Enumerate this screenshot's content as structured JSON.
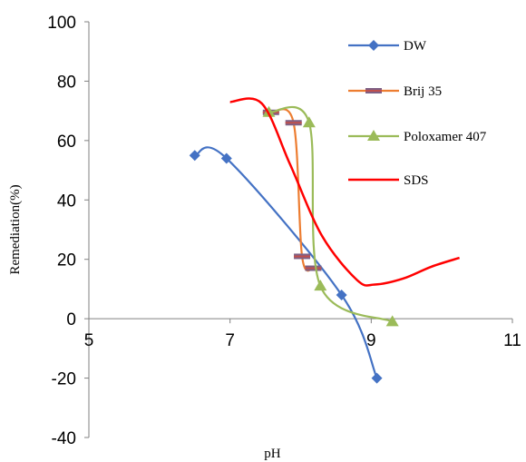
{
  "chart_data": {
    "type": "scatter",
    "xlabel": "pH",
    "ylabel": "Remediation(%)",
    "xlim": [
      5,
      11
    ],
    "ylim": [
      -40,
      100
    ],
    "xticks": [
      5,
      7,
      9,
      11
    ],
    "yticks": [
      -40,
      -20,
      0,
      20,
      40,
      60,
      80,
      100
    ],
    "grid": false,
    "legend_position": "right",
    "series": [
      {
        "name": "DW",
        "color": "#4472C4",
        "marker": "diamond",
        "x": [
          6.5,
          6.95,
          8.58,
          9.08
        ],
        "y": [
          55,
          54,
          8,
          -20
        ]
      },
      {
        "name": "Brij 35",
        "color": "#ED7D31",
        "marker": "dash",
        "x": [
          7.58,
          7.9,
          8.02,
          8.18
        ],
        "y": [
          69.5,
          66,
          21,
          17
        ]
      },
      {
        "name": "Poloxamer 407",
        "color": "#9BBB59",
        "marker": "triangle",
        "x": [
          7.55,
          8.12,
          8.28,
          9.3
        ],
        "y": [
          69.5,
          66,
          11,
          -1
        ]
      },
      {
        "name": "SDS",
        "color": "#FF0000",
        "marker": "none",
        "x": [
          7.0,
          7.45,
          7.85,
          8.3,
          8.8,
          9.05,
          9.45,
          9.85,
          10.25
        ],
        "y": [
          73,
          72.5,
          52,
          28,
          13,
          11.5,
          13.5,
          17.5,
          20.5
        ]
      }
    ]
  }
}
